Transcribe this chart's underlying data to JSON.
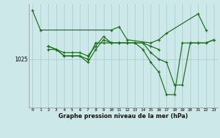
{
  "background_color": "#cce8e8",
  "plot_bg_color": "#cce8e8",
  "grid_color": "#aacccc",
  "line_color": "#1a6e1a",
  "xlabel": "Graphe pression niveau de la mer (hPa)",
  "ylabel_tick": "1025",
  "ytick_val": 1025,
  "xlim": [
    -0.5,
    23.5
  ],
  "ylim": [
    1010,
    1042
  ],
  "hours": [
    0,
    1,
    2,
    3,
    4,
    5,
    6,
    7,
    8,
    9,
    10,
    11,
    12,
    13,
    14,
    15,
    16,
    17,
    18,
    19,
    20,
    21,
    22,
    23
  ],
  "series": [
    [
      1040,
      1034,
      null,
      null,
      null,
      null,
      null,
      null,
      null,
      null,
      1034,
      1035,
      1031,
      null,
      null,
      1030,
      1031,
      1033,
      null,
      null,
      null,
      1039,
      1034,
      null
    ],
    [
      null,
      null,
      1029,
      1028,
      1026,
      1026,
      1026,
      1024,
      1028,
      1031,
      1030,
      1030,
      1030,
      1030,
      1030,
      1027,
      1025,
      1024,
      1017,
      1017,
      1030,
      1030,
      1030,
      1031
    ],
    [
      null,
      null,
      1028,
      1028,
      1026,
      1026,
      1026,
      1025,
      1030,
      1030,
      1030,
      1030,
      1030,
      1030,
      1028,
      1024,
      1021,
      1014,
      1014,
      1030,
      1030,
      1030,
      1030,
      1031
    ],
    [
      null,
      null,
      1029,
      1028,
      1027,
      1027,
      1027,
      1026,
      1029,
      1032,
      1030,
      1030,
      1030,
      1030,
      1030,
      1029,
      1028,
      null,
      null,
      null,
      null,
      null,
      null,
      null
    ]
  ]
}
